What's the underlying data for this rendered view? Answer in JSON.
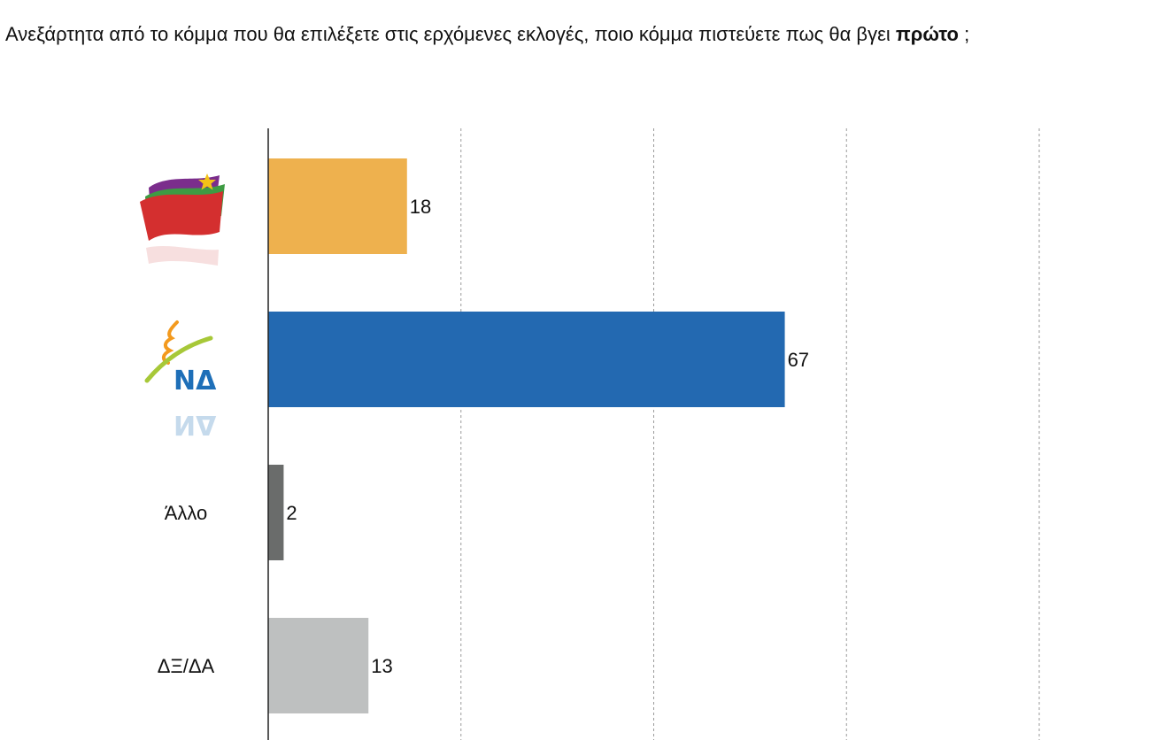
{
  "question": {
    "text_before": "Ανεξάρτητα από το κόμμα που θα επιλέξετε στις ερχόμενες εκλογές, ποιο κόμμα πιστεύετε πως θα βγει ",
    "text_bold": "πρώτο",
    "text_after": " ;"
  },
  "chart_data": {
    "type": "bar",
    "orientation": "horizontal",
    "categories": [
      "ΣΥΡΙΖΑ (logo)",
      "ΝΔ (logo)",
      "Άλλο",
      "ΔΞ/ΔΑ"
    ],
    "category_labels": [
      "",
      "",
      "Άλλο",
      "ΔΞ/ΔΑ"
    ],
    "category_icons": [
      "syriza-logo",
      "nd-logo",
      "",
      ""
    ],
    "nd_logo_text": "ΝΔ",
    "values": [
      18,
      67,
      2,
      13
    ],
    "colors": [
      "#EEB14E",
      "#2369B1",
      "#6A6C6B",
      "#BEC0C0"
    ],
    "xlim": [
      0,
      100
    ],
    "gridlines": [
      25,
      50,
      75,
      100
    ],
    "grid": "dashed vertical"
  }
}
